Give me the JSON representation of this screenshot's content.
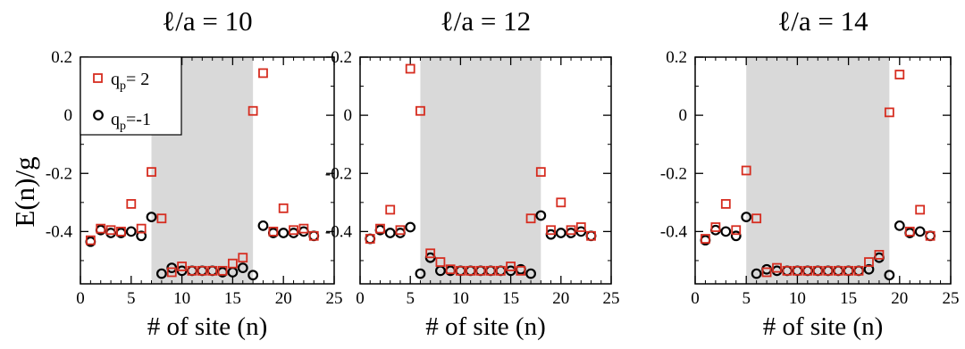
{
  "colors": {
    "series1": "#d62d20",
    "series2": "#000000",
    "shade": "#d9d9d9",
    "frame": "#000000"
  },
  "ylabel": "E(n)/g",
  "legend": [
    {
      "label": "q",
      "sub": "p",
      "suffix": "= 2"
    },
    {
      "label": "q",
      "sub": "p",
      "suffix": "=-1"
    }
  ],
  "chart_data": [
    {
      "type": "scatter",
      "title": "ℓ/a = 10",
      "xlabel": "# of site (n)",
      "xlim": [
        0,
        25
      ],
      "ylim": [
        -0.58,
        0.2
      ],
      "xticks": [
        0,
        5,
        10,
        15,
        20,
        25
      ],
      "yticks": [
        0.2,
        0,
        -0.2,
        -0.4
      ],
      "ytick_labels": [
        "0.2",
        "0",
        "-0.2",
        "-0.4"
      ],
      "shade": [
        7,
        17
      ],
      "legend": "top-left",
      "series": [
        {
          "name": "q_p= 2",
          "marker": "square",
          "x": [
            1,
            2,
            3,
            4,
            5,
            6,
            7,
            8,
            9,
            10,
            11,
            12,
            13,
            14,
            15,
            16,
            17,
            18,
            19,
            20,
            21,
            22,
            23
          ],
          "y": [
            -0.43,
            -0.39,
            -0.395,
            -0.4,
            -0.305,
            -0.39,
            -0.195,
            -0.355,
            -0.54,
            -0.52,
            -0.535,
            -0.535,
            -0.535,
            -0.535,
            -0.51,
            -0.49,
            0.015,
            0.145,
            -0.4,
            -0.32,
            -0.395,
            -0.39,
            -0.415
          ]
        },
        {
          "name": "q_p=-1",
          "marker": "circle",
          "x": [
            1,
            2,
            3,
            4,
            5,
            6,
            7,
            8,
            9,
            10,
            11,
            12,
            13,
            14,
            15,
            16,
            17,
            18,
            19,
            20,
            21,
            22,
            23
          ],
          "y": [
            -0.435,
            -0.395,
            -0.405,
            -0.405,
            -0.4,
            -0.415,
            -0.35,
            -0.545,
            -0.525,
            -0.535,
            -0.535,
            -0.535,
            -0.535,
            -0.54,
            -0.54,
            -0.525,
            -0.55,
            -0.38,
            -0.405,
            -0.405,
            -0.405,
            -0.4,
            -0.415
          ]
        }
      ]
    },
    {
      "type": "scatter",
      "title": "ℓ/a = 12",
      "xlabel": "# of site (n)",
      "xlim": [
        0,
        25
      ],
      "ylim": [
        -0.58,
        0.2
      ],
      "xticks": [
        0,
        5,
        10,
        15,
        20,
        25
      ],
      "yticks": [
        0.2,
        0,
        -0.2,
        -0.4
      ],
      "ytick_labels": [
        "0.2",
        "0",
        "-0.2",
        "-0.4"
      ],
      "shade": [
        6,
        18
      ],
      "series": [
        {
          "name": "q_p= 2",
          "marker": "square",
          "x": [
            1,
            2,
            3,
            4,
            5,
            6,
            7,
            8,
            9,
            10,
            11,
            12,
            13,
            14,
            15,
            16,
            17,
            18,
            19,
            20,
            21,
            22,
            23
          ],
          "y": [
            -0.425,
            -0.39,
            -0.325,
            -0.395,
            0.16,
            0.015,
            -0.475,
            -0.505,
            -0.53,
            -0.535,
            -0.535,
            -0.535,
            -0.535,
            -0.535,
            -0.52,
            -0.535,
            -0.355,
            -0.195,
            -0.395,
            -0.3,
            -0.395,
            -0.385,
            -0.415
          ]
        },
        {
          "name": "q_p=-1",
          "marker": "circle",
          "x": [
            1,
            2,
            3,
            4,
            5,
            6,
            7,
            8,
            9,
            10,
            11,
            12,
            13,
            14,
            15,
            16,
            17,
            18,
            19,
            20,
            21,
            22,
            23
          ],
          "y": [
            -0.425,
            -0.395,
            -0.405,
            -0.405,
            -0.385,
            -0.545,
            -0.49,
            -0.535,
            -0.535,
            -0.535,
            -0.535,
            -0.535,
            -0.535,
            -0.535,
            -0.535,
            -0.53,
            -0.545,
            -0.345,
            -0.41,
            -0.405,
            -0.405,
            -0.4,
            -0.415
          ]
        }
      ]
    },
    {
      "type": "scatter",
      "title": "ℓ/a = 14",
      "xlabel": "# of site (n)",
      "xlim": [
        0,
        25
      ],
      "ylim": [
        -0.58,
        0.2
      ],
      "xticks": [
        0,
        5,
        10,
        15,
        20,
        25
      ],
      "yticks": [
        0.2,
        0,
        -0.2,
        -0.4
      ],
      "ytick_labels": [
        "0.2",
        "0",
        "-0.2",
        "-0.4"
      ],
      "shade": [
        5,
        19
      ],
      "series": [
        {
          "name": "q_p= 2",
          "marker": "square",
          "x": [
            1,
            2,
            3,
            4,
            5,
            6,
            7,
            8,
            9,
            10,
            11,
            12,
            13,
            14,
            15,
            16,
            17,
            18,
            19,
            20,
            21,
            22,
            23
          ],
          "y": [
            -0.425,
            -0.385,
            -0.305,
            -0.395,
            -0.19,
            -0.355,
            -0.54,
            -0.525,
            -0.535,
            -0.535,
            -0.535,
            -0.535,
            -0.535,
            -0.535,
            -0.535,
            -0.535,
            -0.505,
            -0.48,
            0.01,
            0.14,
            -0.4,
            -0.325,
            -0.415
          ]
        },
        {
          "name": "q_p=-1",
          "marker": "circle",
          "x": [
            1,
            2,
            3,
            4,
            5,
            6,
            7,
            8,
            9,
            10,
            11,
            12,
            13,
            14,
            15,
            16,
            17,
            18,
            19,
            20,
            21,
            22,
            23
          ],
          "y": [
            -0.43,
            -0.395,
            -0.4,
            -0.415,
            -0.35,
            -0.545,
            -0.53,
            -0.535,
            -0.535,
            -0.535,
            -0.535,
            -0.535,
            -0.535,
            -0.535,
            -0.535,
            -0.535,
            -0.53,
            -0.49,
            -0.55,
            -0.38,
            -0.405,
            -0.4,
            -0.415
          ]
        }
      ]
    }
  ]
}
